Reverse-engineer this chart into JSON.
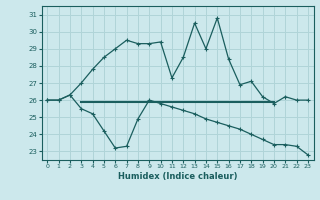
{
  "xlabel": "Humidex (Indice chaleur)",
  "xlim": [
    -0.5,
    23.5
  ],
  "ylim": [
    22.5,
    31.5
  ],
  "xticks": [
    0,
    1,
    2,
    3,
    4,
    5,
    6,
    7,
    8,
    9,
    10,
    11,
    12,
    13,
    14,
    15,
    16,
    17,
    18,
    19,
    20,
    21,
    22,
    23
  ],
  "yticks": [
    23,
    24,
    25,
    26,
    27,
    28,
    29,
    30,
    31
  ],
  "bg_color": "#cce8ec",
  "line_color": "#1a5e5e",
  "grid_color": "#b0d4d8",
  "line1_x": [
    0,
    1,
    2,
    3,
    4,
    5,
    6,
    7,
    8,
    9,
    10,
    11,
    12,
    13,
    14,
    15,
    16,
    17,
    18,
    19,
    20,
    21,
    22,
    23
  ],
  "line1_y": [
    26.0,
    26.0,
    26.3,
    27.0,
    27.8,
    28.5,
    29.0,
    29.5,
    29.3,
    29.3,
    29.4,
    27.3,
    28.5,
    30.5,
    29.0,
    30.8,
    28.4,
    26.9,
    27.1,
    26.2,
    25.8,
    26.2,
    26.0,
    26.0
  ],
  "line2_x": [
    3,
    4,
    5,
    6,
    7,
    8,
    9,
    10,
    11,
    12,
    13,
    14,
    15,
    16,
    17,
    18,
    19,
    20
  ],
  "line2_y": [
    25.9,
    25.9,
    25.9,
    25.9,
    25.9,
    25.9,
    25.9,
    25.9,
    25.9,
    25.9,
    25.9,
    25.9,
    25.9,
    25.9,
    25.9,
    25.9,
    25.9,
    25.9
  ],
  "line3_x": [
    0,
    1,
    2,
    3,
    4,
    5,
    6,
    7,
    8,
    9,
    10,
    11,
    12,
    13,
    14,
    15,
    16,
    17,
    18,
    19,
    20,
    21,
    22,
    23
  ],
  "line3_y": [
    26.0,
    26.0,
    26.3,
    25.5,
    25.2,
    24.2,
    23.2,
    23.3,
    24.9,
    26.0,
    25.8,
    25.6,
    25.4,
    25.2,
    24.9,
    24.7,
    24.5,
    24.3,
    24.0,
    23.7,
    23.4,
    23.4,
    23.3,
    22.8
  ]
}
